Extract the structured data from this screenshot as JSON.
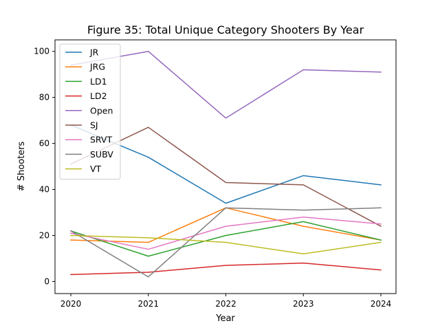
{
  "chart_data": {
    "type": "line",
    "title": "Figure 35: Total Unique Category Shooters By Year",
    "xlabel": "Year",
    "ylabel": "# Shooters",
    "x": [
      "2020",
      "2021",
      "2022",
      "2023",
      "2024"
    ],
    "xlim": [
      2020,
      2024
    ],
    "ylim": [
      0,
      105
    ],
    "yticks": [
      "0",
      "20",
      "40",
      "60",
      "80",
      "100"
    ],
    "grid": false,
    "legend": "upper-left",
    "series": [
      {
        "name": "JR",
        "color": "#1f77b4",
        "values": [
          68,
          54,
          34,
          46,
          42
        ]
      },
      {
        "name": "JRG",
        "color": "#ff7f0e",
        "values": [
          18,
          17,
          32,
          24,
          18
        ]
      },
      {
        "name": "LD1",
        "color": "#2ca02c",
        "values": [
          22,
          11,
          20,
          26,
          18
        ]
      },
      {
        "name": "LD2",
        "color": "#d62728",
        "values": [
          3,
          4,
          7,
          8,
          5
        ]
      },
      {
        "name": "Open",
        "color": "#9467bd",
        "values": [
          94,
          100,
          71,
          92,
          91
        ]
      },
      {
        "name": "SJ",
        "color": "#8c564b",
        "values": [
          51,
          67,
          43,
          42,
          24
        ]
      },
      {
        "name": "SRVT",
        "color": "#e377c2",
        "values": [
          21,
          14,
          24,
          28,
          25
        ]
      },
      {
        "name": "SUBV",
        "color": "#7f7f7f",
        "values": [
          22,
          2,
          32,
          31,
          32
        ]
      },
      {
        "name": "VT",
        "color": "#bcbd22",
        "values": [
          20,
          19,
          17,
          12,
          17
        ]
      }
    ]
  }
}
